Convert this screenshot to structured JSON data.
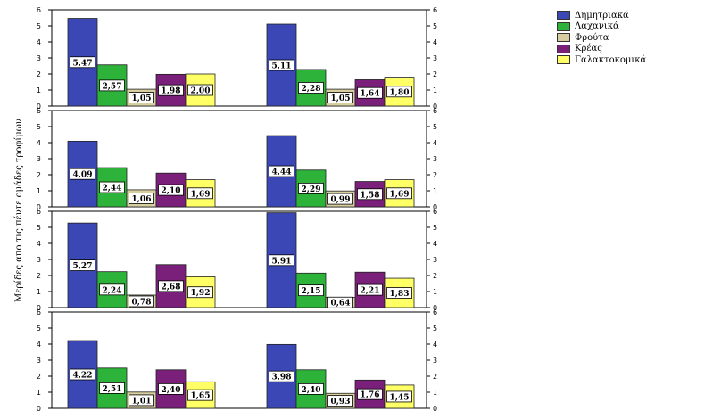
{
  "chart_data": {
    "type": "bar",
    "ylabel": "Μερίδες απο τις πέντε ομάδες τροφίμων",
    "ylim": [
      0,
      6
    ],
    "yticks": [
      "0",
      "1",
      "2",
      "3",
      "4",
      "5",
      "6"
    ],
    "grid": false,
    "legend_position": "top-right",
    "series": [
      {
        "name": "Δημητριακά",
        "color": "#3a47b5"
      },
      {
        "name": "Λαχανικά",
        "color": "#2db33a"
      },
      {
        "name": "Φρούτα",
        "color": "#d8cfa0"
      },
      {
        "name": "Κρέας",
        "color": "#7a1f7a"
      },
      {
        "name": "Γαλακτοκομικά",
        "color": "#ffff66"
      }
    ],
    "panels": [
      {
        "groups": [
          {
            "values": [
              5.47,
              2.57,
              1.05,
              1.98,
              2.0
            ],
            "labels": [
              "5,47",
              "2,57",
              "1,05",
              "1,98",
              "2,00"
            ]
          },
          {
            "values": [
              5.11,
              2.28,
              1.05,
              1.64,
              1.8
            ],
            "labels": [
              "5,11",
              "2,28",
              "1,05",
              "1,64",
              "1,80"
            ]
          }
        ]
      },
      {
        "groups": [
          {
            "values": [
              4.09,
              2.44,
              1.06,
              2.1,
              1.69
            ],
            "labels": [
              "4,09",
              "2,44",
              "1,06",
              "2,10",
              "1,69"
            ]
          },
          {
            "values": [
              4.44,
              2.29,
              0.99,
              1.58,
              1.69
            ],
            "labels": [
              "4,44",
              "2,29",
              "0,99",
              "1,58",
              "1,69"
            ]
          }
        ]
      },
      {
        "groups": [
          {
            "values": [
              5.27,
              2.24,
              0.78,
              2.68,
              1.92
            ],
            "labels": [
              "5,27",
              "2,24",
              "0,78",
              "2,68",
              "1,92"
            ]
          },
          {
            "values": [
              5.91,
              2.15,
              0.64,
              2.21,
              1.83
            ],
            "labels": [
              "5,91",
              "2,15",
              "0,64",
              "2,21",
              "1,83"
            ]
          }
        ]
      },
      {
        "groups": [
          {
            "values": [
              4.22,
              2.51,
              1.01,
              2.4,
              1.65
            ],
            "labels": [
              "4,22",
              "2,51",
              "1,01",
              "2,40",
              "1,65"
            ]
          },
          {
            "values": [
              3.98,
              2.4,
              0.93,
              1.76,
              1.45
            ],
            "labels": [
              "3,98",
              "2,40",
              "0,93",
              "1,76",
              "1,45"
            ]
          }
        ]
      }
    ]
  }
}
